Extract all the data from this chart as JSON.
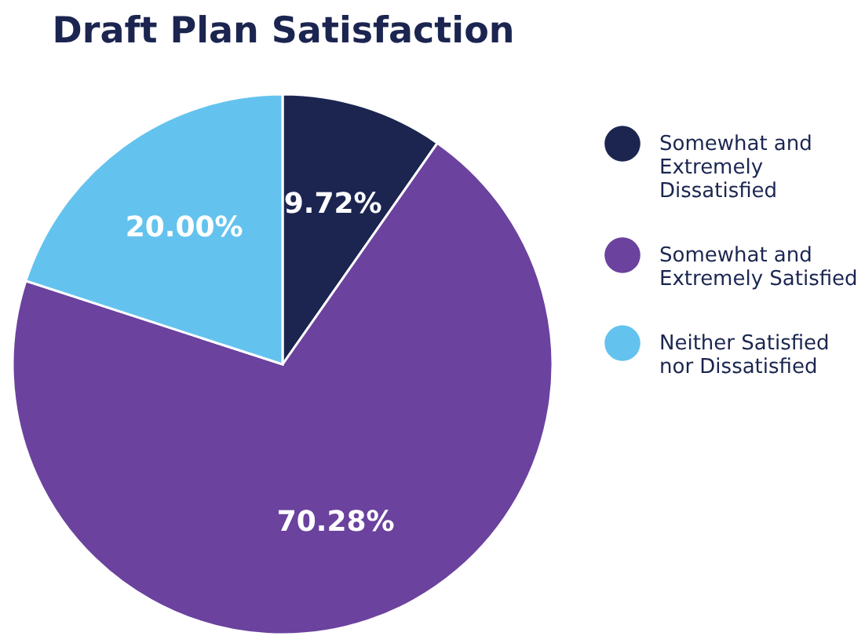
{
  "chart_data": {
    "type": "pie",
    "title": "Draft Plan Satisfaction",
    "categories": [
      "Somewhat and Extremely Dissatisfied",
      "Somewhat and Extremely Satisfied",
      "Neither Satisfied nor Dissatisfied"
    ],
    "values": [
      9.72,
      70.28,
      20.0
    ],
    "colors": [
      "#1b2550",
      "#6b429e",
      "#64c3ee"
    ],
    "value_labels": [
      "9.72%",
      "70.28%",
      "20.00%"
    ],
    "legend": "right"
  }
}
